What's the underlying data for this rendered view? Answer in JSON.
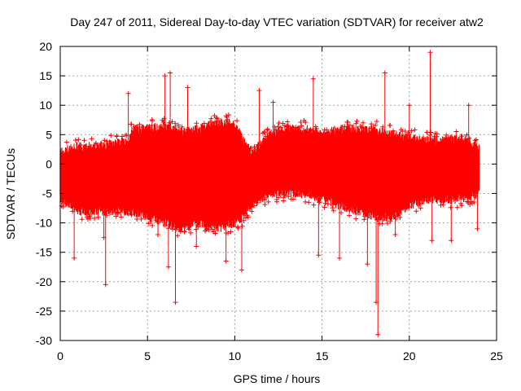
{
  "chart_data": {
    "type": "scatter",
    "title": "Day 247 of 2011, Sidereal Day-to-day VTEC variation (SDTVAR) for receiver atw2",
    "xlabel": "GPS time / hours",
    "ylabel": "SDTVAR / TECUs",
    "xlim": [
      0,
      25
    ],
    "ylim": [
      -30,
      20
    ],
    "x_ticks": [
      0,
      5,
      10,
      15,
      20,
      25
    ],
    "y_ticks": [
      -30,
      -25,
      -20,
      -15,
      -10,
      -5,
      0,
      5,
      10,
      15,
      20
    ],
    "grid": true,
    "series_color": "#ff0000",
    "marker": "plus",
    "x_range_of_data": [
      0,
      24
    ],
    "envelope": {
      "x": [
        0,
        0.5,
        1,
        2,
        3,
        3.9,
        4.1,
        5,
        6,
        7,
        8,
        9,
        10,
        10.5,
        11,
        12,
        13,
        14,
        15,
        16,
        17,
        18,
        19,
        20,
        21,
        22,
        23,
        24
      ],
      "upper": [
        2,
        2.5,
        3,
        3,
        3.5,
        4,
        6,
        6,
        6.5,
        5.5,
        6,
        7,
        7,
        4,
        2,
        5,
        6,
        6,
        5,
        6,
        6,
        6,
        5,
        4.5,
        4,
        4,
        4.5,
        3
      ],
      "lower": [
        -6,
        -7,
        -8,
        -8,
        -8,
        -8,
        -8,
        -9,
        -10,
        -11,
        -10,
        -11,
        -10,
        -9,
        -7,
        -5,
        -5,
        -5,
        -6,
        -7,
        -8,
        -9,
        -9,
        -7,
        -6,
        -6,
        -6,
        -5
      ]
    },
    "outliers": [
      {
        "x": 0.8,
        "y": -16
      },
      {
        "x": 2.5,
        "y": -12.5
      },
      {
        "x": 2.6,
        "y": -20.5
      },
      {
        "x": 3.9,
        "y": 12
      },
      {
        "x": 5.6,
        "y": -12
      },
      {
        "x": 6.0,
        "y": 15
      },
      {
        "x": 6.3,
        "y": 15.5
      },
      {
        "x": 6.2,
        "y": -17.5
      },
      {
        "x": 6.6,
        "y": -23.5
      },
      {
        "x": 7.3,
        "y": 13
      },
      {
        "x": 7.8,
        "y": -14
      },
      {
        "x": 9.5,
        "y": -16.5
      },
      {
        "x": 10.4,
        "y": -18
      },
      {
        "x": 11.4,
        "y": 12.5
      },
      {
        "x": 12.2,
        "y": 10.5
      },
      {
        "x": 14.5,
        "y": 14.5
      },
      {
        "x": 14.8,
        "y": -15.5
      },
      {
        "x": 16.0,
        "y": -16
      },
      {
        "x": 17.6,
        "y": -17
      },
      {
        "x": 18.2,
        "y": -29
      },
      {
        "x": 18.1,
        "y": -23.5
      },
      {
        "x": 18.6,
        "y": 15.5
      },
      {
        "x": 19.2,
        "y": -12
      },
      {
        "x": 20.0,
        "y": 10
      },
      {
        "x": 21.2,
        "y": 19
      },
      {
        "x": 21.3,
        "y": -13
      },
      {
        "x": 22.4,
        "y": -13
      },
      {
        "x": 23.4,
        "y": 10
      },
      {
        "x": 23.9,
        "y": -11
      }
    ]
  }
}
